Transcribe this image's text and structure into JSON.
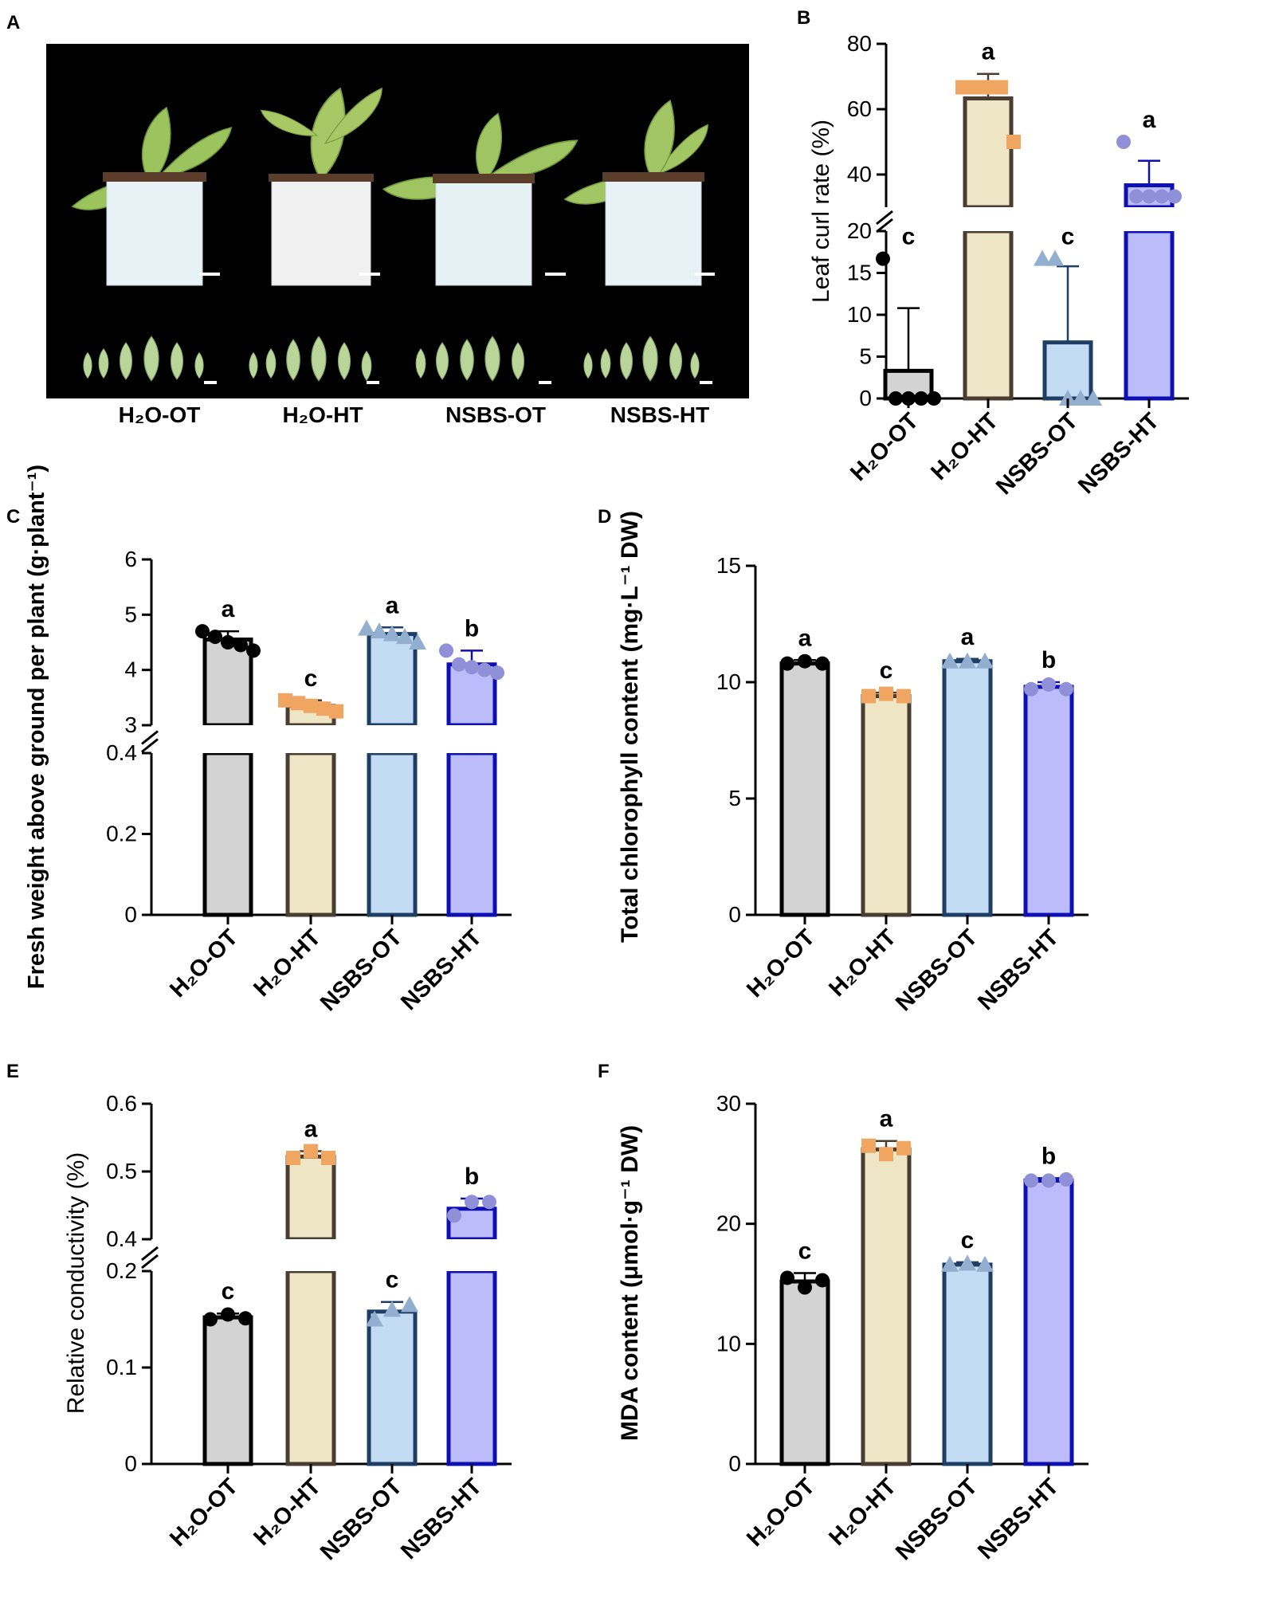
{
  "figure": {
    "panel_letters": [
      "A",
      "B",
      "C",
      "D",
      "E",
      "F"
    ],
    "colors": {
      "H2O-OT": {
        "fill": "#d3d3d3",
        "edge": "#000000",
        "dot": "#000000"
      },
      "H2O-HT": {
        "fill": "#efe6c6",
        "edge": "#4a3d32",
        "dot": "#f0a561"
      },
      "NSBS-OT": {
        "fill": "#c3dbf3",
        "edge": "#1d3f66",
        "dot": "#92afd0"
      },
      "NSBS-HT": {
        "fill": "#bcbcfb",
        "edge": "#0e10b4",
        "dot": "#8f90d8"
      }
    }
  },
  "photo_panel": {
    "letter": "A",
    "labels": [
      "H₂O-OT",
      "H₂O-HT",
      "NSBS-OT",
      "NSBS-HT"
    ],
    "background": "#000000",
    "pot_color": "#e8f2f6",
    "leaf_color": "#9cc45e"
  },
  "chart_data": [
    {
      "panel": "B",
      "type": "bar",
      "title": "",
      "ylabel": "Leaf curl rate (%)",
      "categories": [
        "H₂O-OT",
        "H₂O-HT",
        "NSBS-OT",
        "NSBS-HT"
      ],
      "values": [
        3.3,
        63.3,
        6.7,
        36.7
      ],
      "errors": [
        7.5,
        7.5,
        9.1,
        7.5
      ],
      "letters": [
        "c",
        "a",
        "c",
        "a"
      ],
      "points": [
        [
          16.7,
          0,
          0,
          0,
          0
        ],
        [
          66.7,
          66.7,
          66.7,
          66.7,
          50
        ],
        [
          16.7,
          16.7,
          0,
          0,
          0
        ],
        [
          50,
          33.3,
          33.3,
          33.3,
          33.3
        ]
      ],
      "markers": [
        "circle",
        "square",
        "triangle",
        "circle"
      ],
      "y_break": {
        "lower": [
          0,
          20
        ],
        "upper": [
          30,
          80
        ]
      },
      "yticks_lower": [
        0,
        5,
        10,
        15,
        20
      ],
      "yticks_upper": [
        40,
        60,
        80
      ]
    },
    {
      "panel": "C",
      "type": "bar",
      "title": "",
      "ylabel": "Fresh weight above ground per plant (g·plant⁻¹)",
      "categories": [
        "H₂O-OT",
        "H₂O-HT",
        "NSBS-OT",
        "NSBS-HT"
      ],
      "values": [
        4.55,
        3.35,
        4.65,
        4.1
      ],
      "errors": [
        0.15,
        0.1,
        0.12,
        0.25
      ],
      "letters": [
        "a",
        "c",
        "a",
        "b"
      ],
      "points": [
        [
          4.7,
          4.6,
          4.5,
          4.45,
          4.35
        ],
        [
          3.45,
          3.4,
          3.35,
          3.3,
          3.25
        ],
        [
          4.75,
          4.7,
          4.65,
          4.6,
          4.5
        ],
        [
          4.35,
          4.1,
          4.05,
          4.0,
          3.95
        ]
      ],
      "markers": [
        "circle",
        "square",
        "triangle",
        "circle"
      ],
      "y_break": {
        "lower": [
          0,
          0.4
        ],
        "upper": [
          3,
          6
        ]
      },
      "yticks_lower": [
        0.0,
        0.2,
        0.4
      ],
      "yticks_upper": [
        3,
        4,
        5,
        6
      ]
    },
    {
      "panel": "D",
      "type": "bar",
      "title": "",
      "ylabel": "Total chlorophyll content (mg·L⁻¹ DW)",
      "categories": [
        "H₂O-OT",
        "H₂O-HT",
        "NSBS-OT",
        "NSBS-HT"
      ],
      "values": [
        10.8,
        9.4,
        10.9,
        9.8
      ],
      "errors": [
        0.15,
        0.15,
        0.1,
        0.2
      ],
      "letters": [
        "a",
        "c",
        "a",
        "b"
      ],
      "points": [
        [
          10.8,
          10.9,
          10.8
        ],
        [
          9.4,
          9.5,
          9.4
        ],
        [
          10.9,
          10.9,
          10.9
        ],
        [
          9.7,
          9.9,
          9.7
        ]
      ],
      "markers": [
        "circle",
        "square",
        "triangle",
        "circle"
      ],
      "ylim": [
        0,
        15
      ],
      "yticks": [
        0,
        5,
        10,
        15
      ]
    },
    {
      "panel": "E",
      "type": "bar",
      "title": "",
      "ylabel": "Relative conductivity (%)",
      "categories": [
        "H₂O-OT",
        "H₂O-HT",
        "NSBS-OT",
        "NSBS-HT"
      ],
      "values": [
        0.152,
        0.522,
        0.158,
        0.445
      ],
      "errors": [
        0.004,
        0.008,
        0.01,
        0.015
      ],
      "letters": [
        "c",
        "a",
        "c",
        "b"
      ],
      "points": [
        [
          0.15,
          0.155,
          0.151
        ],
        [
          0.52,
          0.53,
          0.52
        ],
        [
          0.15,
          0.16,
          0.165
        ],
        [
          0.435,
          0.455,
          0.455
        ]
      ],
      "markers": [
        "circle",
        "square",
        "triangle",
        "circle"
      ],
      "y_break": {
        "lower": [
          0,
          0.2
        ],
        "upper": [
          0.4,
          0.6
        ]
      },
      "yticks_lower": [
        0.0,
        0.1,
        0.2
      ],
      "yticks_upper": [
        0.4,
        0.5,
        0.6
      ]
    },
    {
      "panel": "F",
      "type": "bar",
      "title": "",
      "ylabel": "MDA content (μmol·g⁻¹ DW)",
      "categories": [
        "H₂O-OT",
        "H₂O-HT",
        "NSBS-OT",
        "NSBS-HT"
      ],
      "values": [
        15.2,
        26.2,
        16.6,
        23.6
      ],
      "errors": [
        0.7,
        0.7,
        0.2,
        0.2
      ],
      "letters": [
        "c",
        "a",
        "c",
        "b"
      ],
      "points": [
        [
          15.5,
          14.7,
          15.3
        ],
        [
          26.5,
          25.8,
          26.3
        ],
        [
          16.6,
          16.7,
          16.6
        ],
        [
          23.6,
          23.6,
          23.7
        ]
      ],
      "markers": [
        "circle",
        "square",
        "triangle",
        "circle"
      ],
      "ylim": [
        0,
        30
      ],
      "yticks": [
        0,
        10,
        20,
        30
      ]
    }
  ]
}
